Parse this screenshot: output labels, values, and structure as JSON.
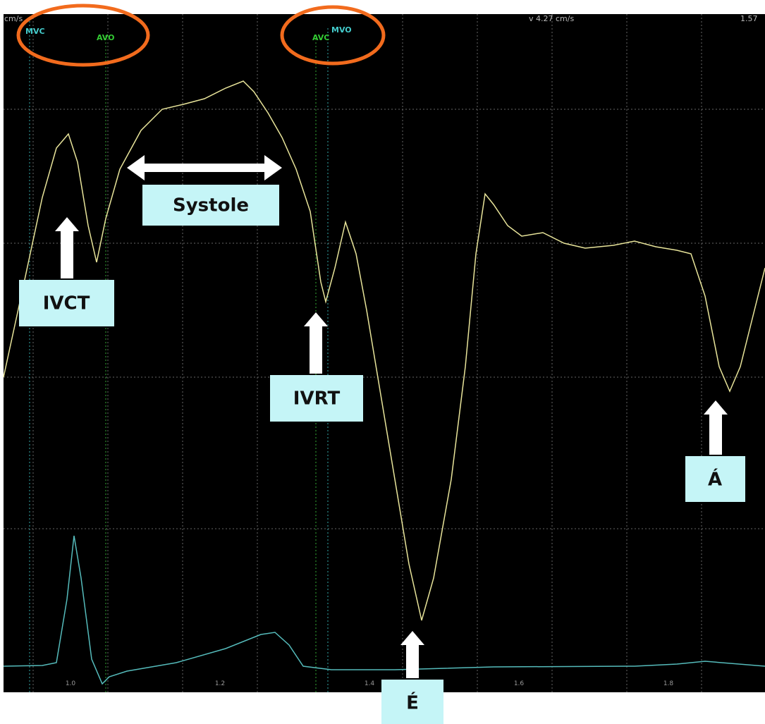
{
  "header": {
    "unit": "cm/s",
    "velocity": "v 4.27 cm/s",
    "time": "1.57"
  },
  "events": {
    "mvc": "MVC",
    "avo": "AVO",
    "avc": "AVC",
    "mvo": "MVO"
  },
  "x_axis": {
    "ticks": [
      "1.0",
      "1.2",
      "1.4",
      "1.6",
      "1.8"
    ]
  },
  "annotations": {
    "systole": "Systole",
    "ivct": "IVCT",
    "ivrt": "IVRT",
    "e_prime": "É",
    "a_prime": "Á"
  }
}
